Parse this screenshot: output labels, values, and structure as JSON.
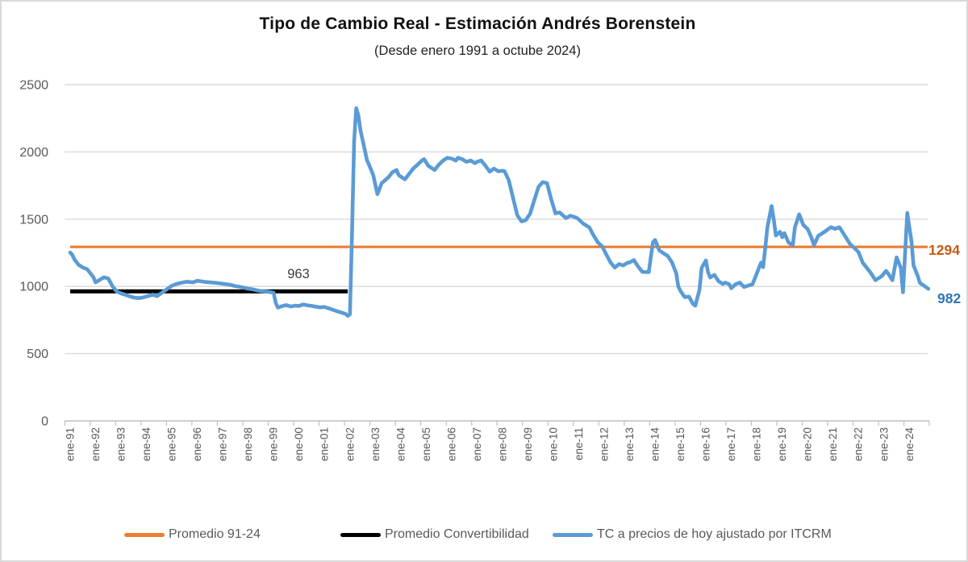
{
  "header": {
    "title": "Tipo de Cambio Real - Estimación Andrés Borenstein",
    "subtitle": "(Desde enero 1991 a octube 2024)"
  },
  "annotations": {
    "convertibilidad_avg": "963",
    "promedio_91_24": "1294",
    "last_value": "982"
  },
  "legend": {
    "items": [
      {
        "label": "Promedio 91-24",
        "color": "#ED7D31"
      },
      {
        "label": "Promedio Convertibilidad",
        "color": "#000000"
      },
      {
        "label": "TC a precios de hoy ajustado por ITCRM",
        "color": "#5B9BD5"
      }
    ]
  },
  "colors": {
    "grid": "#D9D9D9",
    "axis": "#BFBFBF",
    "tick_text": "#595959",
    "orange_line": "#ED7D31",
    "orange_label": "#C55A11",
    "black_line": "#000000",
    "blue_line": "#5B9BD5",
    "blue_label": "#2E75B6"
  },
  "chart_data": {
    "type": "line",
    "title": "Tipo de Cambio Real - Estimación Andrés Borenstein",
    "subtitle": "(Desde enero 1991 a octube 2024)",
    "grid": true,
    "legend_position": "bottom",
    "y_axis": {
      "ticks": [
        0,
        500,
        1000,
        1500,
        2000,
        2500
      ],
      "range": [
        0,
        2500
      ]
    },
    "x_axis": {
      "months_per_tick": 12,
      "total_months": 405,
      "tick_labels": [
        "ene-91",
        "ene-92",
        "ene-93",
        "ene-94",
        "ene-95",
        "ene-96",
        "ene-97",
        "ene-98",
        "ene-99",
        "ene-00",
        "ene-01",
        "ene-02",
        "ene-03",
        "ene-04",
        "ene-05",
        "ene-06",
        "ene-07",
        "ene-08",
        "ene-09",
        "ene-10",
        "ene-11",
        "ene-12",
        "ene-13",
        "ene-14",
        "ene-15",
        "ene-16",
        "ene-17",
        "ene-18",
        "ene-19",
        "ene-20",
        "ene-21",
        "ene-22",
        "ene-23",
        "ene-24"
      ]
    },
    "series": [
      {
        "name": "Promedio 91-24",
        "type": "constant",
        "value": 1294,
        "value_label": "1294",
        "color": "#ED7D31",
        "line_width": 3.2,
        "span_months": [
          0,
          405
        ]
      },
      {
        "name": "Promedio Convertibilidad",
        "type": "constant",
        "value": 963,
        "value_label": "963",
        "color": "#000000",
        "line_width": 5,
        "span_months": [
          0,
          131
        ]
      },
      {
        "name": "TC a precios de hoy ajustado por ITCRM",
        "type": "line",
        "color": "#5B9BD5",
        "line_width": 4.6,
        "end_value_label": "982",
        "points": [
          [
            0,
            1252
          ],
          [
            1,
            1235
          ],
          [
            2,
            1200
          ],
          [
            4,
            1160
          ],
          [
            6,
            1140
          ],
          [
            8,
            1128
          ],
          [
            10,
            1088
          ],
          [
            11,
            1068
          ],
          [
            12,
            1030
          ],
          [
            14,
            1050
          ],
          [
            16,
            1068
          ],
          [
            18,
            1058
          ],
          [
            19,
            1030
          ],
          [
            20,
            1000
          ],
          [
            22,
            962
          ],
          [
            24,
            948
          ],
          [
            26,
            938
          ],
          [
            28,
            926
          ],
          [
            30,
            917
          ],
          [
            32,
            913
          ],
          [
            34,
            916
          ],
          [
            37,
            929
          ],
          [
            39,
            939
          ],
          [
            41,
            928
          ],
          [
            43,
            950
          ],
          [
            45,
            972
          ],
          [
            48,
            1005
          ],
          [
            50,
            1018
          ],
          [
            52,
            1025
          ],
          [
            55,
            1035
          ],
          [
            58,
            1030
          ],
          [
            60,
            1042
          ],
          [
            63,
            1035
          ],
          [
            66,
            1030
          ],
          [
            69,
            1026
          ],
          [
            72,
            1020
          ],
          [
            74,
            1016
          ],
          [
            76,
            1010
          ],
          [
            78,
            1002
          ],
          [
            80,
            997
          ],
          [
            82,
            990
          ],
          [
            84,
            983
          ],
          [
            86,
            979
          ],
          [
            88,
            971
          ],
          [
            90,
            965
          ],
          [
            93,
            961
          ],
          [
            96,
            953
          ],
          [
            97,
            878
          ],
          [
            98,
            843
          ],
          [
            100,
            853
          ],
          [
            102,
            861
          ],
          [
            104,
            851
          ],
          [
            106,
            857
          ],
          [
            108,
            855
          ],
          [
            110,
            866
          ],
          [
            112,
            859
          ],
          [
            114,
            855
          ],
          [
            116,
            849
          ],
          [
            118,
            844
          ],
          [
            120,
            847
          ],
          [
            122,
            837
          ],
          [
            124,
            826
          ],
          [
            126,
            815
          ],
          [
            128,
            806
          ],
          [
            130,
            795
          ],
          [
            131,
            781
          ],
          [
            132,
            792
          ],
          [
            133,
            1400
          ],
          [
            134,
            2080
          ],
          [
            135,
            2325
          ],
          [
            136,
            2270
          ],
          [
            137,
            2160
          ],
          [
            139,
            2015
          ],
          [
            140,
            1940
          ],
          [
            141,
            1906
          ],
          [
            143,
            1828
          ],
          [
            144,
            1756
          ],
          [
            145,
            1686
          ],
          [
            147,
            1768
          ],
          [
            150,
            1808
          ],
          [
            152,
            1848
          ],
          [
            154,
            1866
          ],
          [
            155,
            1828
          ],
          [
            157,
            1806
          ],
          [
            158,
            1796
          ],
          [
            160,
            1838
          ],
          [
            162,
            1878
          ],
          [
            164,
            1906
          ],
          [
            166,
            1936
          ],
          [
            167,
            1946
          ],
          [
            169,
            1896
          ],
          [
            172,
            1866
          ],
          [
            174,
            1906
          ],
          [
            176,
            1936
          ],
          [
            178,
            1956
          ],
          [
            180,
            1950
          ],
          [
            182,
            1936
          ],
          [
            183,
            1956
          ],
          [
            185,
            1946
          ],
          [
            187,
            1926
          ],
          [
            189,
            1936
          ],
          [
            191,
            1916
          ],
          [
            192,
            1926
          ],
          [
            194,
            1936
          ],
          [
            196,
            1896
          ],
          [
            198,
            1853
          ],
          [
            200,
            1876
          ],
          [
            202,
            1856
          ],
          [
            204,
            1860
          ],
          [
            205,
            1856
          ],
          [
            207,
            1788
          ],
          [
            209,
            1658
          ],
          [
            211,
            1528
          ],
          [
            213,
            1483
          ],
          [
            215,
            1493
          ],
          [
            217,
            1540
          ],
          [
            219,
            1640
          ],
          [
            221,
            1740
          ],
          [
            223,
            1776
          ],
          [
            225,
            1768
          ],
          [
            227,
            1648
          ],
          [
            229,
            1543
          ],
          [
            231,
            1550
          ],
          [
            234,
            1508
          ],
          [
            236,
            1526
          ],
          [
            239,
            1510
          ],
          [
            240,
            1498
          ],
          [
            242,
            1468
          ],
          [
            245,
            1438
          ],
          [
            247,
            1378
          ],
          [
            249,
            1328
          ],
          [
            251,
            1298
          ],
          [
            253,
            1238
          ],
          [
            255,
            1178
          ],
          [
            257,
            1140
          ],
          [
            259,
            1166
          ],
          [
            261,
            1156
          ],
          [
            263,
            1176
          ],
          [
            264,
            1178
          ],
          [
            266,
            1196
          ],
          [
            268,
            1148
          ],
          [
            270,
            1108
          ],
          [
            273,
            1106
          ],
          [
            275,
            1328
          ],
          [
            276,
            1346
          ],
          [
            278,
            1268
          ],
          [
            280,
            1246
          ],
          [
            282,
            1226
          ],
          [
            284,
            1178
          ],
          [
            286,
            1098
          ],
          [
            287,
            998
          ],
          [
            288,
            966
          ],
          [
            290,
            921
          ],
          [
            292,
            924
          ],
          [
            294,
            868
          ],
          [
            295,
            857
          ],
          [
            297,
            978
          ],
          [
            298,
            1138
          ],
          [
            300,
            1193
          ],
          [
            301,
            1106
          ],
          [
            302,
            1066
          ],
          [
            304,
            1086
          ],
          [
            306,
            1038
          ],
          [
            308,
            1018
          ],
          [
            309,
            1028
          ],
          [
            311,
            1016
          ],
          [
            312,
            986
          ],
          [
            314,
            1016
          ],
          [
            316,
            1028
          ],
          [
            318,
            996
          ],
          [
            320,
            1006
          ],
          [
            322,
            1016
          ],
          [
            323,
            1056
          ],
          [
            324,
            1096
          ],
          [
            326,
            1176
          ],
          [
            327,
            1143
          ],
          [
            328,
            1288
          ],
          [
            329,
            1438
          ],
          [
            331,
            1598
          ],
          [
            332,
            1498
          ],
          [
            333,
            1378
          ],
          [
            335,
            1406
          ],
          [
            336,
            1366
          ],
          [
            337,
            1396
          ],
          [
            339,
            1326
          ],
          [
            341,
            1306
          ],
          [
            342,
            1438
          ],
          [
            344,
            1536
          ],
          [
            346,
            1456
          ],
          [
            348,
            1426
          ],
          [
            350,
            1356
          ],
          [
            351,
            1306
          ],
          [
            353,
            1376
          ],
          [
            356,
            1406
          ],
          [
            359,
            1440
          ],
          [
            361,
            1428
          ],
          [
            363,
            1440
          ],
          [
            366,
            1366
          ],
          [
            368,
            1316
          ],
          [
            370,
            1286
          ],
          [
            372,
            1256
          ],
          [
            374,
            1176
          ],
          [
            378,
            1096
          ],
          [
            380,
            1046
          ],
          [
            383,
            1076
          ],
          [
            385,
            1116
          ],
          [
            386,
            1096
          ],
          [
            388,
            1046
          ],
          [
            390,
            1216
          ],
          [
            392,
            1136
          ],
          [
            393,
            956
          ],
          [
            395,
            1546
          ],
          [
            397,
            1336
          ],
          [
            398,
            1156
          ],
          [
            400,
            1076
          ],
          [
            401,
            1026
          ],
          [
            403,
            1004
          ],
          [
            405,
            982
          ]
        ]
      }
    ]
  }
}
